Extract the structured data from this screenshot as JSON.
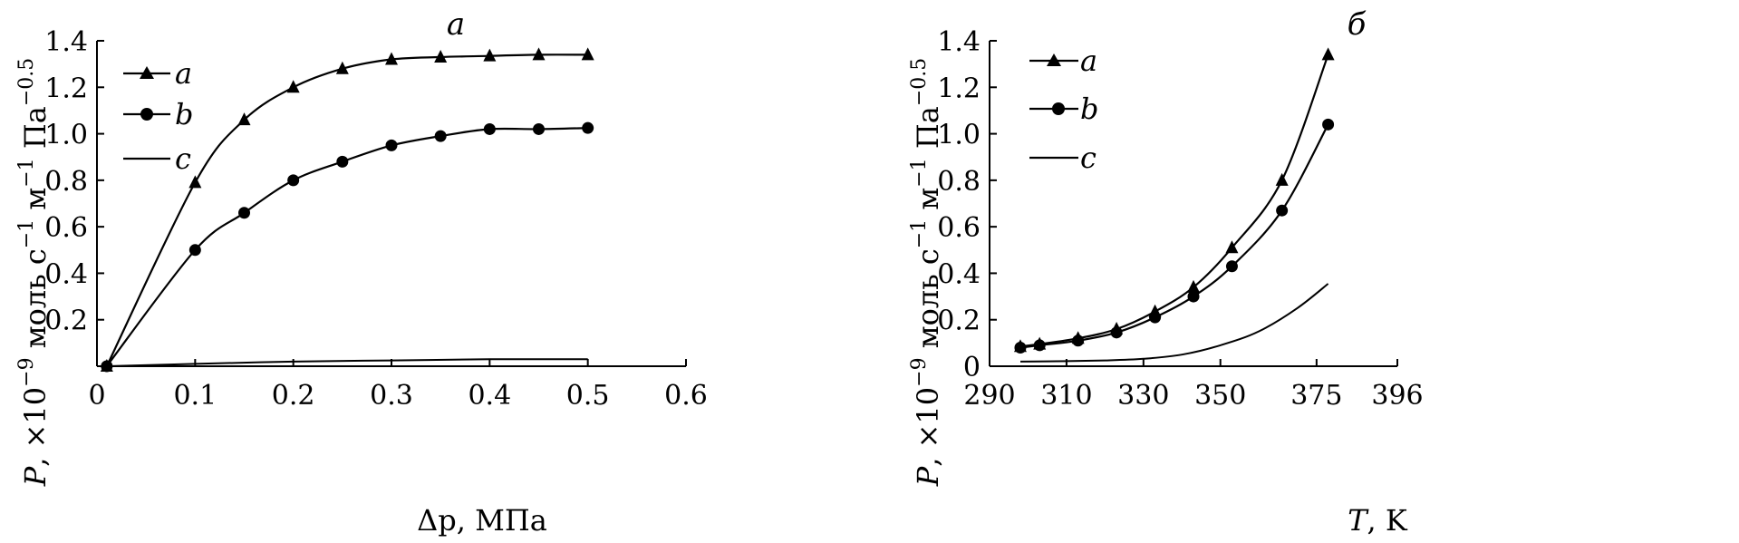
{
  "chart_data": [
    {
      "type": "line",
      "title": "a",
      "xlabel_var": "Δp",
      "xlabel_unit": ", МПа",
      "ylabel_var": "P",
      "ylabel_text": ", ×10",
      "ylabel_exp": "−9",
      "ylabel_unit1": " моль с",
      "ylabel_exp1": "−1",
      "ylabel_unit2": " м",
      "ylabel_exp2": "−1",
      "ylabel_unit3": " Па",
      "ylabel_exp3": "−0.5",
      "xlim": [
        0,
        0.6
      ],
      "ylim": [
        0,
        1.4
      ],
      "xticks": [
        0,
        0.1,
        0.2,
        0.3,
        0.4,
        0.5,
        0.6
      ],
      "xtick_labels": [
        "0",
        "0.1",
        "0.2",
        "0.3",
        "0.4",
        "0.5",
        "0.6"
      ],
      "yticks": [
        0.2,
        0.4,
        0.6,
        0.8,
        1.0,
        1.2,
        1.4
      ],
      "ytick_labels": [
        "0.2",
        "0.4",
        "0.6",
        "0.8",
        "1.0",
        "1.2",
        "1.4"
      ],
      "legend_position": "top-left",
      "series": [
        {
          "name": "a",
          "marker": "triangle",
          "x": [
            0.01,
            0.1,
            0.15,
            0.2,
            0.25,
            0.3,
            0.35,
            0.4,
            0.45,
            0.5
          ],
          "y": [
            0.0,
            0.79,
            1.06,
            1.2,
            1.28,
            1.32,
            1.33,
            1.335,
            1.34,
            1.34
          ]
        },
        {
          "name": "b",
          "marker": "circle",
          "x": [
            0.01,
            0.1,
            0.15,
            0.2,
            0.25,
            0.3,
            0.35,
            0.4,
            0.45,
            0.5
          ],
          "y": [
            0.0,
            0.5,
            0.66,
            0.8,
            0.88,
            0.95,
            0.99,
            1.02,
            1.02,
            1.025
          ]
        },
        {
          "name": "c",
          "marker": "none",
          "x": [
            0.01,
            0.1,
            0.2,
            0.3,
            0.4,
            0.5
          ],
          "y": [
            0.0,
            0.01,
            0.02,
            0.025,
            0.03,
            0.03
          ]
        }
      ]
    },
    {
      "type": "line",
      "title": "б",
      "xlabel_var": "T",
      "xlabel_unit": ", K",
      "ylabel_var": "P",
      "ylabel_text": ", ×10",
      "ylabel_exp": "−9",
      "ylabel_unit1": " моль с",
      "ylabel_exp1": "−1",
      "ylabel_unit2": " м",
      "ylabel_exp2": "−1",
      "ylabel_unit3": " Па",
      "ylabel_exp3": "−0.5",
      "xlim": [
        290,
        396
      ],
      "ylim": [
        0,
        1.4
      ],
      "xticks": [
        290,
        310,
        330,
        350,
        375,
        396
      ],
      "xtick_labels": [
        "290",
        "310",
        "330",
        "350",
        "375",
        "396"
      ],
      "yticks": [
        0,
        0.2,
        0.4,
        0.6,
        0.8,
        1.0,
        1.2,
        1.4
      ],
      "ytick_labels": [
        "0",
        "0.2",
        "0.4",
        "0.6",
        "0.8",
        "1.0",
        "1.2",
        "1.4"
      ],
      "legend_position": "top-left",
      "series": [
        {
          "name": "a",
          "marker": "triangle",
          "x": [
            298,
            303,
            313,
            323,
            333,
            343,
            353,
            366,
            378
          ],
          "y": [
            0.085,
            0.095,
            0.12,
            0.16,
            0.235,
            0.34,
            0.51,
            0.8,
            1.34
          ]
        },
        {
          "name": "b",
          "marker": "circle",
          "x": [
            298,
            303,
            313,
            323,
            333,
            343,
            353,
            366,
            378
          ],
          "y": [
            0.08,
            0.09,
            0.11,
            0.145,
            0.21,
            0.3,
            0.43,
            0.67,
            1.04
          ]
        },
        {
          "name": "c",
          "marker": "none",
          "x": [
            298,
            310,
            320,
            330,
            340,
            350,
            360,
            370,
            378
          ],
          "y": [
            0.02,
            0.022,
            0.025,
            0.032,
            0.05,
            0.09,
            0.15,
            0.25,
            0.355
          ]
        }
      ]
    }
  ]
}
